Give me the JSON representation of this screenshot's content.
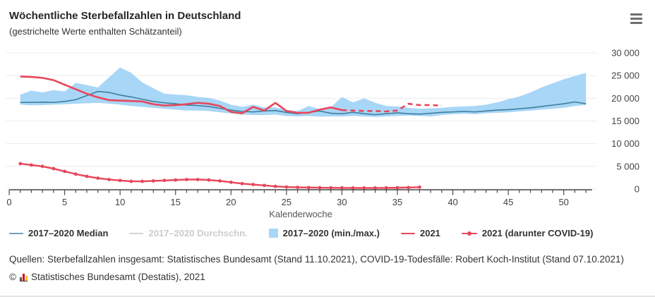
{
  "header": {
    "title": "Wöchentliche Sterbefallzahlen in Deutschland",
    "subtitle": "(gestrichelte Werte enthalten Schätzanteil)"
  },
  "chart_data": {
    "type": "line",
    "title": "Wöchentliche Sterbefallzahlen in Deutschland",
    "xlabel": "Kalenderwoche",
    "ylabel": "",
    "x_ticks": [
      0,
      5,
      10,
      15,
      20,
      25,
      30,
      35,
      40,
      45,
      50
    ],
    "y_ticks": [
      0,
      5000,
      10000,
      15000,
      20000,
      25000,
      30000
    ],
    "ylim": [
      0,
      30000
    ],
    "xlim": [
      0,
      52.6
    ],
    "weeks_start": 1,
    "grid": "horizontal",
    "legend_position": "bottom",
    "series": [
      {
        "name": "2017–2020 Median",
        "type": "line",
        "color": "#3f7d9e",
        "values": [
          19100,
          19100,
          19150,
          19100,
          19300,
          19700,
          20600,
          21500,
          21300,
          20700,
          20300,
          19800,
          19300,
          19000,
          18800,
          18500,
          18400,
          18200,
          17800,
          17400,
          17100,
          17000,
          17200,
          17300,
          16900,
          16600,
          16900,
          17200,
          16700,
          16600,
          16900,
          16600,
          16400,
          16600,
          16800,
          16600,
          16500,
          16700,
          16900,
          17000,
          17100,
          17000,
          17200,
          17400,
          17500,
          17700,
          17900,
          18200,
          18500,
          18800,
          19200,
          18800
        ]
      },
      {
        "name": "2017–2020 Durchschn.",
        "type": "line",
        "color": "#d4d4d4",
        "disabled": true,
        "values": []
      },
      {
        "name": "2017–2020 (min./max.)",
        "type": "band",
        "color": "#a8d6f6",
        "max": [
          20800,
          21700,
          21300,
          21800,
          21500,
          23400,
          22900,
          22400,
          24600,
          26800,
          25600,
          23500,
          22200,
          21000,
          20800,
          20700,
          20300,
          20100,
          19500,
          18600,
          18100,
          18600,
          18000,
          18000,
          17400,
          17200,
          18300,
          17600,
          18000,
          20300,
          19100,
          20000,
          19000,
          18300,
          18200,
          17900,
          17700,
          17800,
          17900,
          18100,
          18200,
          18300,
          18600,
          19100,
          19800,
          20400,
          21300,
          22400,
          23300,
          24200,
          24900,
          25600
        ],
        "min": [
          18600,
          18450,
          18500,
          18600,
          18700,
          18800,
          18900,
          19000,
          18800,
          18600,
          18300,
          18100,
          17900,
          17700,
          17500,
          17300,
          17300,
          17200,
          16900,
          16650,
          16400,
          16300,
          16300,
          16400,
          16100,
          16000,
          16100,
          15950,
          16000,
          16000,
          16100,
          16000,
          15900,
          16000,
          16100,
          16200,
          16100,
          16000,
          16300,
          16500,
          16600,
          16500,
          16700,
          16800,
          16900,
          17100,
          17300,
          17500,
          17700,
          17900,
          18300,
          18500
        ]
      },
      {
        "name": "2021",
        "type": "line",
        "color": "#e8465a",
        "dashed_from_week": 30,
        "values": [
          24800,
          24700,
          24500,
          24000,
          23000,
          22000,
          21000,
          20200,
          19600,
          19500,
          19400,
          19300,
          18700,
          18400,
          18500,
          18700,
          19000,
          18800,
          18300,
          17000,
          16700,
          18100,
          17300,
          19000,
          17200,
          16800,
          16800,
          17500,
          18000,
          17400,
          17300,
          17200,
          17200,
          17100,
          17300,
          18800,
          18500,
          18500,
          18400
        ]
      },
      {
        "name": "2021 (darunter COVID-19)",
        "type": "line-marker",
        "color": "#e8465a",
        "values": [
          5600,
          5300,
          5000,
          4500,
          3900,
          3300,
          2800,
          2400,
          2100,
          1900,
          1700,
          1700,
          1800,
          1900,
          2000,
          2100,
          2100,
          2000,
          1800,
          1500,
          1200,
          1000,
          800,
          600,
          450,
          380,
          330,
          300,
          280,
          260,
          250,
          240,
          250,
          260,
          290,
          340,
          420
        ]
      }
    ]
  },
  "legend": {
    "items": [
      {
        "label": "2017–2020 Median",
        "swatch": "line",
        "color": "#6ba0bf",
        "disabled": false
      },
      {
        "label": "2017–2020 Durchschn.",
        "swatch": "line",
        "color": "#d4d4d4",
        "disabled": true
      },
      {
        "label": "2017–2020 (min./max.)",
        "swatch": "square",
        "color": "#a8d6f6",
        "disabled": false
      },
      {
        "label": "2021",
        "swatch": "line",
        "color": "#e8465a",
        "disabled": false
      },
      {
        "label": "2021 (darunter COVID-19)",
        "swatch": "line-dot",
        "color": "#e8465a",
        "disabled": false
      }
    ]
  },
  "footer": {
    "sources": "Quellen: Sterbefallzahlen insgesamt: Statistisches Bundesamt (Stand 11.10.2021), COVID-19-Todesfälle: Robert Koch-Institut (Stand 07.10.2021)",
    "copyright_symbol": "©",
    "copyright_text": "Statistisches Bundesamt (Destatis), 2021"
  },
  "colors": {
    "median_line": "#3f7d9e",
    "band": "#a8d6f6",
    "red_2021": "#e8465a",
    "gridline": "#ececec",
    "axis": "#4a4a4a"
  }
}
